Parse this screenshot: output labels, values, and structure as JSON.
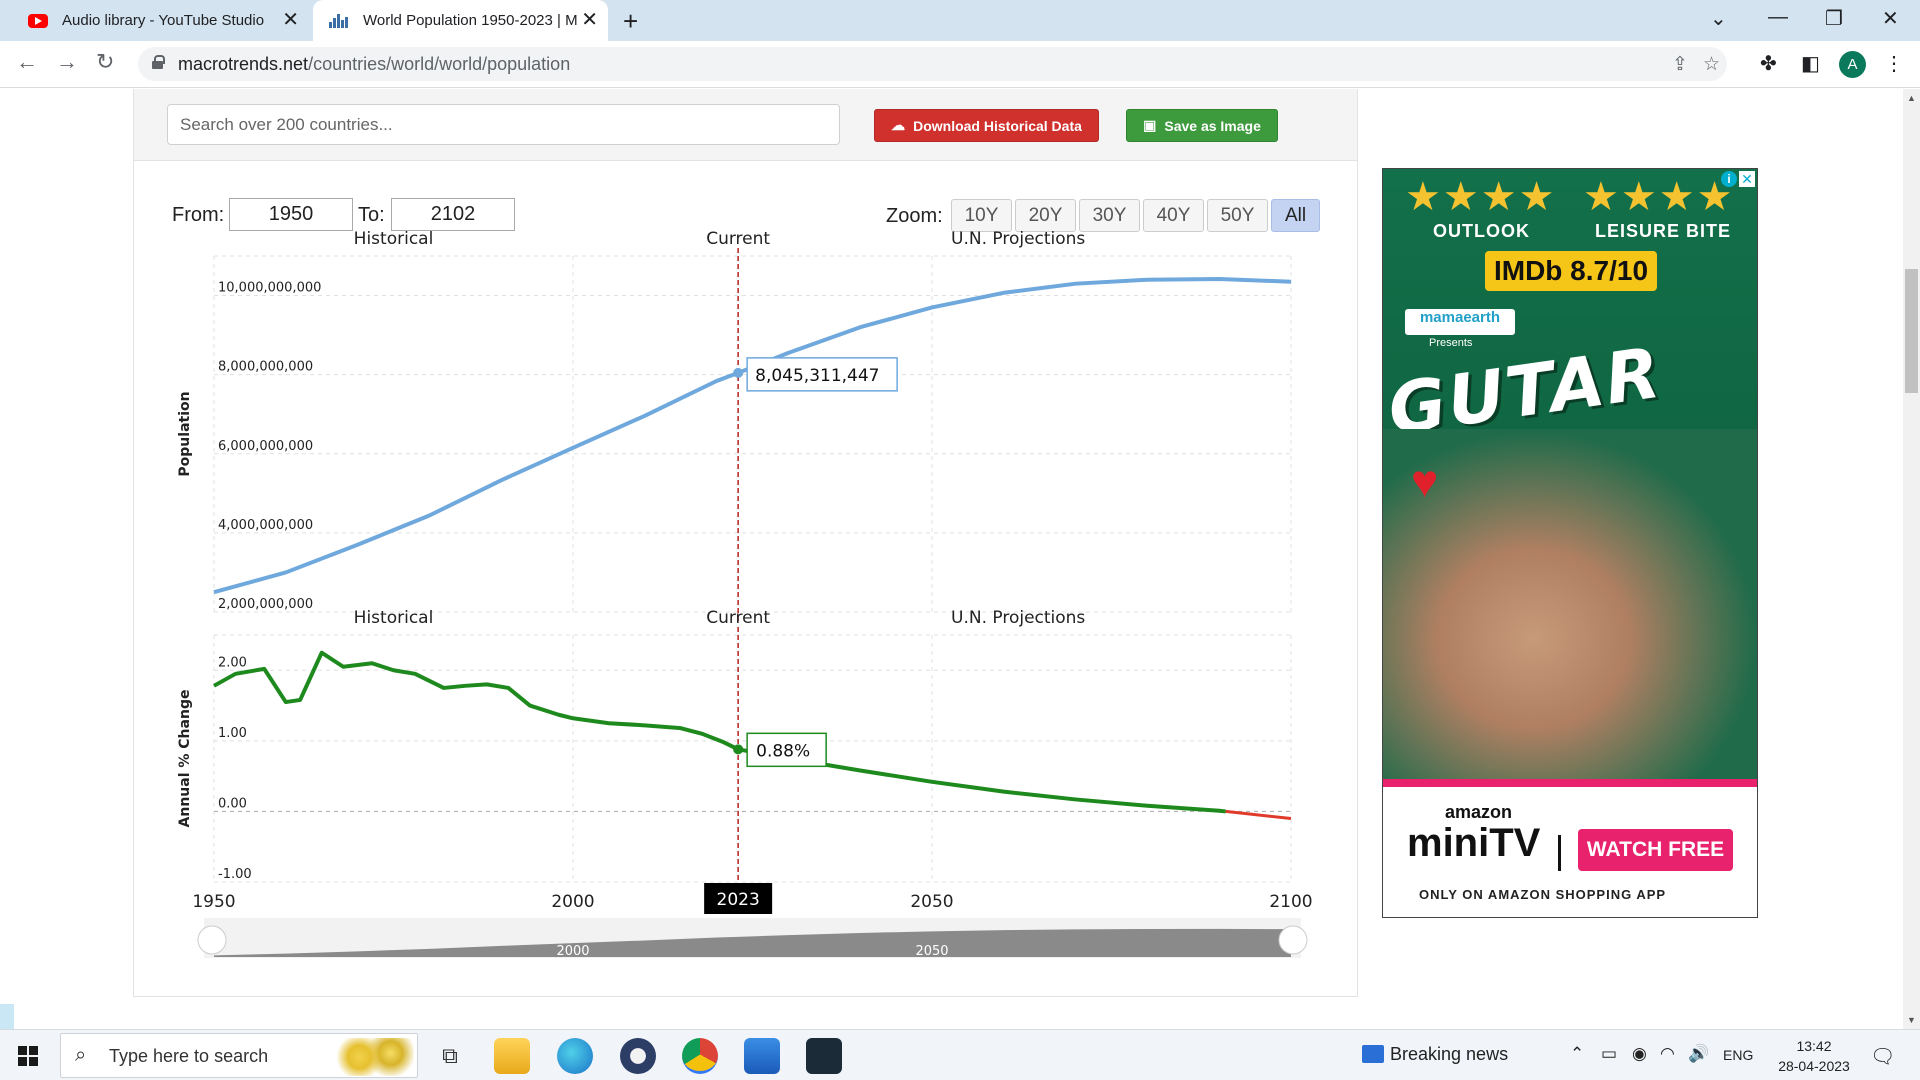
{
  "tabs": [
    {
      "title": "Audio library - YouTube Studio",
      "icon": "youtube-icon"
    },
    {
      "title": "World Population 1950-2023 | M",
      "icon": "macrotrends-icon"
    }
  ],
  "address_bar": {
    "domain": "macrotrends.net",
    "path": "/countries/world/world/population"
  },
  "profile_initial": "A",
  "page": {
    "search_placeholder": "Search over 200 countries...",
    "download_label": "Download Historical Data",
    "save_label": "Save as Image",
    "from_label": "From:",
    "from_value": "1950",
    "to_label": "To:",
    "to_value": "2102",
    "zoom_label": "Zoom:",
    "zoom_options": [
      "10Y",
      "20Y",
      "30Y",
      "40Y",
      "50Y",
      "All"
    ],
    "zoom_selected": "All"
  },
  "chart_data": [
    {
      "type": "line",
      "section_labels": [
        "Historical",
        "Current",
        "U.N. Projections"
      ],
      "ylabel": "Population",
      "ylim": [
        2000000000,
        11000000000
      ],
      "y_ticks": [
        "2,000,000,000",
        "4,000,000,000",
        "6,000,000,000",
        "8,000,000,000",
        "10,000,000,000"
      ],
      "x": [
        1950,
        1960,
        1970,
        1980,
        1990,
        2000,
        2010,
        2020,
        2023,
        2030,
        2040,
        2050,
        2060,
        2070,
        2080,
        2090,
        2100
      ],
      "series": [
        {
          "values": [
            2500000000,
            3000000000,
            3700000000,
            4440000000,
            5330000000,
            6150000000,
            6960000000,
            7840000000,
            8045311447,
            8550000000,
            9200000000,
            9700000000,
            10070000000,
            10300000000,
            10400000000,
            10420000000,
            10350000000
          ],
          "color": "#6fa8dc"
        }
      ],
      "tooltip": "8,045,311,447",
      "current_year": 2023
    },
    {
      "type": "line",
      "section_labels": [
        "Historical",
        "Current",
        "U.N. Projections"
      ],
      "ylabel": "Annual % Change",
      "ylim": [
        -1.0,
        2.5
      ],
      "y_ticks": [
        "-1.00",
        "0.00",
        "1.00",
        "2.00"
      ],
      "x": [
        1950,
        1953,
        1957,
        1960,
        1962,
        1965,
        1968,
        1972,
        1975,
        1978,
        1982,
        1985,
        1988,
        1991,
        1994,
        1998,
        2000,
        2005,
        2010,
        2015,
        2018,
        2021,
        2023,
        2030,
        2040,
        2050,
        2060,
        2070,
        2080,
        2090,
        2100
      ],
      "series": [
        {
          "values": [
            1.78,
            1.95,
            2.02,
            1.55,
            1.58,
            2.25,
            2.05,
            2.1,
            2.0,
            1.95,
            1.75,
            1.78,
            1.8,
            1.75,
            1.5,
            1.37,
            1.32,
            1.25,
            1.22,
            1.18,
            1.1,
            0.98,
            0.88,
            0.75,
            0.58,
            0.42,
            0.28,
            0.17,
            0.08,
            0.01,
            -0.1
          ],
          "color": "#1e8a1e",
          "negative_color": "#e03a2b"
        }
      ],
      "tooltip": "0.88%",
      "current_year": 2023,
      "x_ticks": [
        "1950",
        "2000",
        "2050",
        "2100"
      ],
      "current_label": "2023",
      "navigator_ticks": [
        "2000",
        "2050"
      ]
    }
  ],
  "ad": {
    "stars": "★★★★",
    "outlet1": "OUTLOOK",
    "outlet2": "LEISURE BITE",
    "rating": "IMDb 8.7/10",
    "sponsor": "mamaearth",
    "presents": "Presents",
    "title": "GUTAR GU",
    "network_small": "amazon",
    "network": "miniTV",
    "cta": "WATCH FREE",
    "footer": "ONLY ON AMAZON SHOPPING APP"
  },
  "taskbar": {
    "search_placeholder": "Type here to search",
    "news": "Breaking news",
    "language": "ENG",
    "time": "13:42",
    "date": "28-04-2023"
  }
}
